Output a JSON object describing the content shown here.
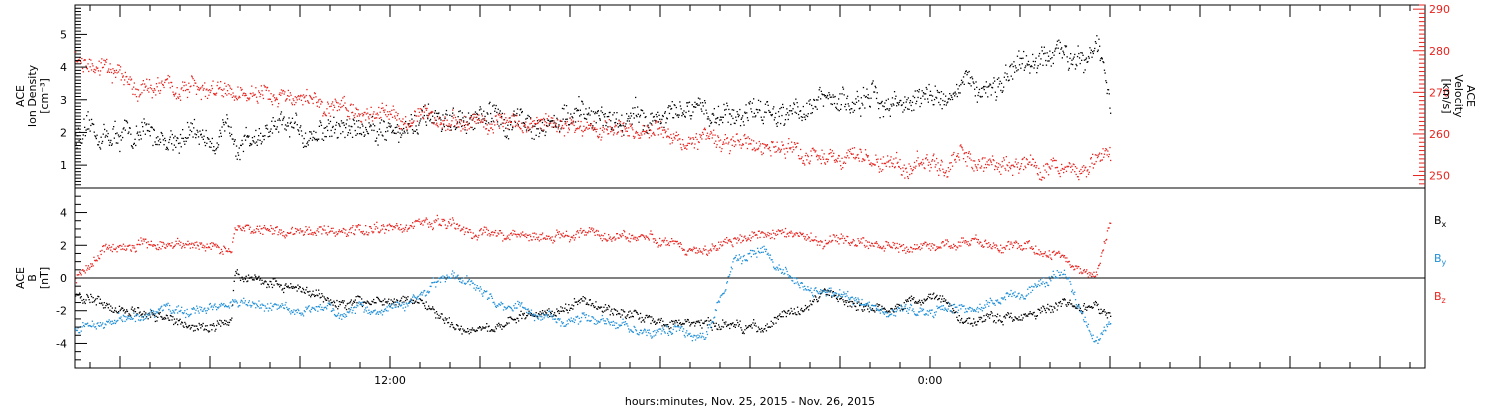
{
  "chart_data": [
    {
      "type": "scatter",
      "panel": "top",
      "title": "",
      "xlabel": "",
      "left_axis": {
        "label_lines": [
          "ACE",
          "Ion Density",
          "[cm⁻³]"
        ],
        "range": [
          0.3,
          5.9
        ],
        "ticks": [
          1,
          2,
          3,
          4,
          5
        ],
        "tick_labels": [
          "1",
          "2",
          "3",
          "4",
          "5"
        ]
      },
      "right_axis": {
        "label_lines": [
          "ACE",
          "Velocity",
          "[km/s]"
        ],
        "range": [
          247,
          291
        ],
        "ticks": [
          250,
          260,
          270,
          280,
          290
        ],
        "tick_labels": [
          "250",
          "260",
          "270",
          "280",
          "290"
        ],
        "color": "#e8231e"
      },
      "x_range_hours": [
        0,
        45
      ],
      "series": [
        {
          "axis": "left",
          "color": "#000000",
          "profile_hours": [
            0,
            5,
            10,
            15,
            20,
            25,
            28,
            31,
            33,
            34,
            34.5
          ],
          "profile_values": [
            1.9,
            1.9,
            2.2,
            2.4,
            2.5,
            2.9,
            3.0,
            3.6,
            4.4,
            4.8,
            3.0
          ]
        },
        {
          "axis": "right",
          "color": "#e8231e",
          "profile_hours": [
            0,
            2,
            5,
            9,
            13,
            17,
            21,
            25,
            27,
            29,
            31,
            33,
            34.5
          ],
          "profile_values": [
            278,
            272,
            270,
            266,
            263,
            262,
            259,
            255,
            253,
            253,
            253,
            252,
            254
          ]
        }
      ]
    },
    {
      "type": "scatter",
      "panel": "bottom",
      "title": "",
      "xlabel": "hours:minutes, Nov. 25, 2015 - Nov. 26, 2015",
      "left_axis": {
        "label_lines": [
          "ACE",
          "B",
          "[nT]"
        ],
        "range": [
          -5.5,
          5.5
        ],
        "ticks": [
          -4,
          -2,
          0,
          2,
          4
        ],
        "tick_labels": [
          "-4",
          "-2",
          "0",
          "2",
          "4"
        ]
      },
      "x_range_hours": [
        0,
        45
      ],
      "x_ticks": [
        {
          "hours": 10.5,
          "label": "12:00"
        },
        {
          "hours": 28.5,
          "label": "0:00"
        }
      ],
      "legend": [
        "Bx",
        "By",
        "Bz"
      ],
      "series": [
        {
          "name": "Bx",
          "color": "#000000",
          "profile_hours": [
            0,
            2,
            4,
            5.2,
            5.3,
            7,
            9,
            11,
            13,
            15,
            17,
            19,
            21,
            23,
            25,
            27,
            28.5,
            30,
            33,
            34,
            34.5
          ],
          "profile_values": [
            -1.0,
            -2.0,
            -3.0,
            -2.6,
            0.3,
            -0.5,
            -1.6,
            -1.2,
            -3.0,
            -2.4,
            -1.4,
            -2.5,
            -3.0,
            -3.0,
            -1.0,
            -2.0,
            -1.0,
            -2.7,
            -1.5,
            -1.7,
            -2.6
          ]
        },
        {
          "name": "By",
          "color": "#1e8fd8",
          "profile_hours": [
            0,
            3,
            6,
            9,
            11,
            12.5,
            14,
            15.5,
            17,
            19,
            21,
            22,
            23,
            24,
            26,
            28,
            30,
            32,
            33,
            34,
            34.5
          ],
          "profile_values": [
            -3.1,
            -2.0,
            -1.6,
            -2.2,
            -1.5,
            0.4,
            -1.5,
            -2.3,
            -2.5,
            -3.2,
            -3.4,
            1.3,
            1.5,
            -0.2,
            -1.4,
            -2.0,
            -1.8,
            -0.6,
            0.4,
            -3.9,
            -2.5
          ]
        },
        {
          "name": "Bz",
          "color": "#e8231e",
          "profile_hours": [
            0,
            1,
            3,
            5.2,
            5.3,
            8,
            10,
            12,
            13.5,
            15,
            17,
            19,
            21,
            22,
            23.5,
            25,
            27,
            28.5,
            30,
            32,
            33,
            34,
            34.5
          ],
          "profile_values": [
            0.0,
            2.0,
            2.1,
            1.7,
            3.2,
            2.8,
            3.2,
            3.2,
            2.8,
            2.6,
            2.8,
            2.5,
            1.6,
            2.6,
            2.8,
            2.5,
            2.0,
            1.8,
            2.2,
            1.9,
            1.2,
            0.2,
            3.5
          ]
        }
      ]
    }
  ]
}
